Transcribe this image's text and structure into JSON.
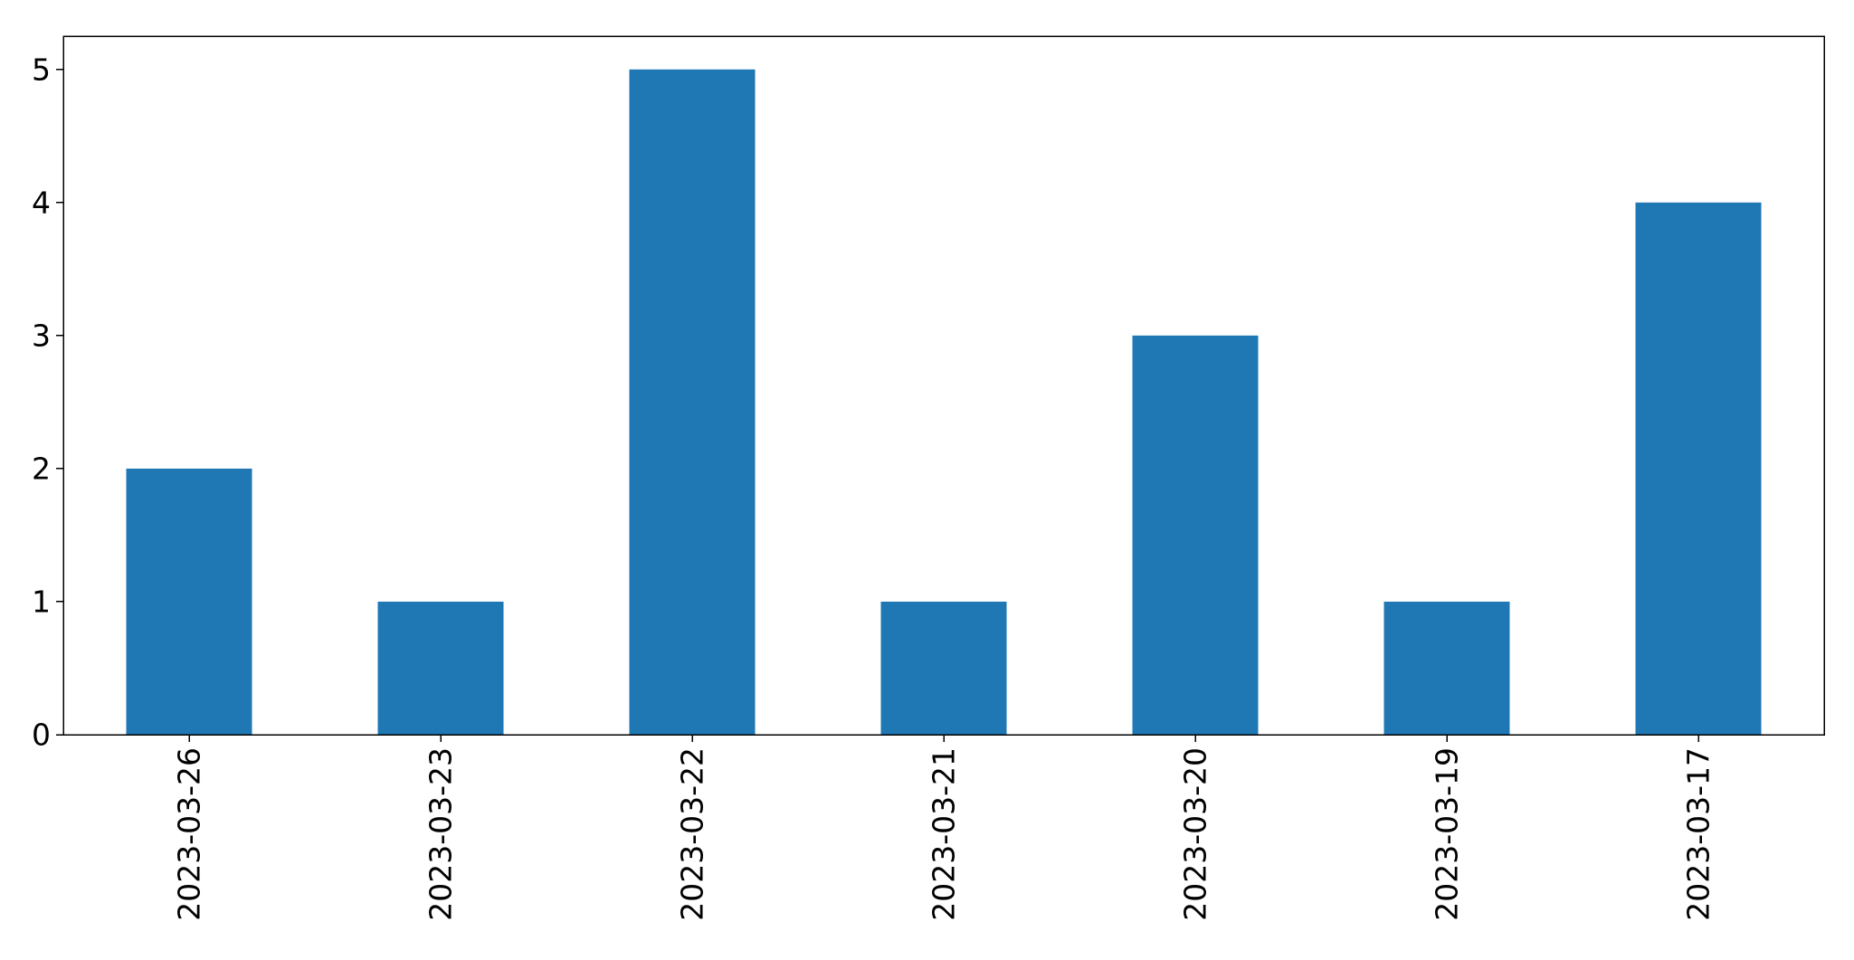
{
  "chart_data": {
    "type": "bar",
    "title": "",
    "xlabel": "",
    "ylabel": "",
    "categories": [
      "2023-03-26",
      "2023-03-23",
      "2023-03-22",
      "2023-03-21",
      "2023-03-20",
      "2023-03-19",
      "2023-03-17"
    ],
    "values": [
      2,
      1,
      5,
      1,
      3,
      1,
      4
    ],
    "ylim": [
      0,
      5.25
    ],
    "yticks": [
      0,
      1,
      2,
      3,
      4,
      5
    ],
    "bar_color": "#1f77b4",
    "grid": false,
    "legend": false,
    "x_tick_rotation": "vertical"
  }
}
